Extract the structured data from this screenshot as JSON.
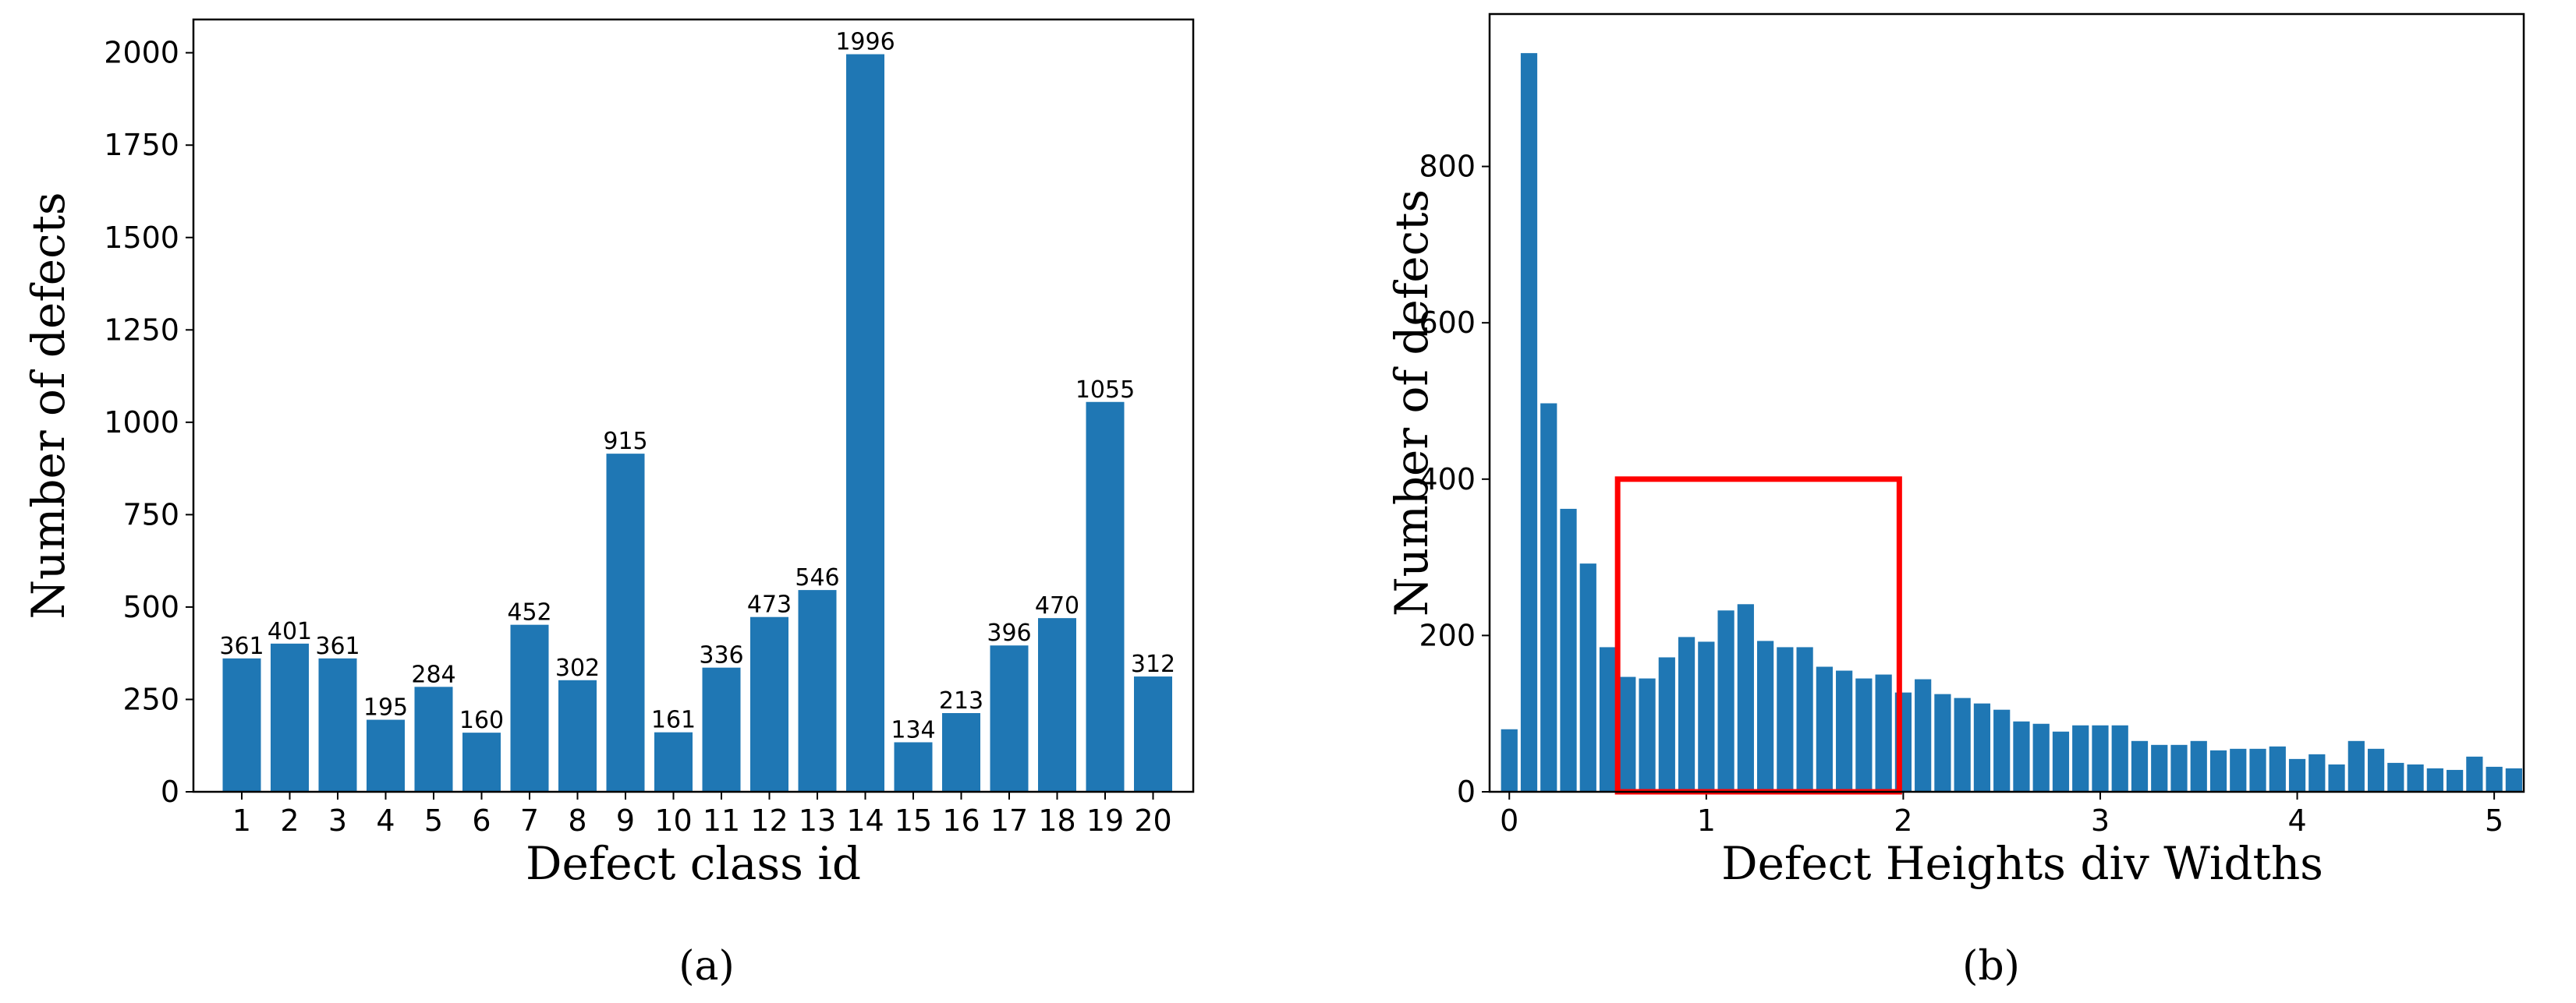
{
  "chart_data": [
    {
      "type": "bar",
      "caption": "(a)",
      "xlabel": "Defect class id",
      "ylabel": "Number of defects",
      "categories": [
        "1",
        "2",
        "3",
        "4",
        "5",
        "6",
        "7",
        "8",
        "9",
        "10",
        "11",
        "12",
        "13",
        "14",
        "15",
        "16",
        "17",
        "18",
        "19",
        "20"
      ],
      "values": [
        361,
        401,
        361,
        195,
        284,
        160,
        452,
        302,
        915,
        161,
        336,
        473,
        546,
        1996,
        134,
        213,
        396,
        470,
        1055,
        312
      ],
      "data_labels": [
        "361",
        "401",
        "361",
        "195",
        "284",
        "160",
        "452",
        "302",
        "915",
        "161",
        "336",
        "473",
        "546",
        "1996",
        "134",
        "213",
        "396",
        "470",
        "1055",
        "312"
      ],
      "yticks": [
        0,
        250,
        500,
        750,
        1000,
        1250,
        1500,
        1750,
        2000
      ],
      "ytick_labels": [
        "0",
        "250",
        "500",
        "750",
        "1000",
        "1250",
        "1500",
        "1750",
        "2000"
      ],
      "ylim": [
        0,
        2090
      ],
      "grid": false,
      "color": "#1f77b4"
    },
    {
      "type": "bar",
      "caption": "(b)",
      "xlabel": "Defect Heights div Widths",
      "ylabel": "Number of defects",
      "bin_width": 0.1,
      "x": [
        0.0,
        0.1,
        0.2,
        0.3,
        0.4,
        0.5,
        0.6,
        0.7,
        0.8,
        0.9,
        1.0,
        1.1,
        1.2,
        1.3,
        1.4,
        1.5,
        1.6,
        1.7,
        1.8,
        1.9,
        2.0,
        2.1,
        2.2,
        2.3,
        2.4,
        2.5,
        2.6,
        2.7,
        2.8,
        2.9,
        3.0,
        3.1,
        3.2,
        3.3,
        3.4,
        3.5,
        3.6,
        3.7,
        3.8,
        3.9,
        4.0,
        4.1,
        4.2,
        4.3,
        4.4,
        4.5,
        4.6,
        4.7,
        4.8,
        4.9,
        5.0,
        5.1
      ],
      "values": [
        80,
        945,
        497,
        362,
        292,
        185,
        147,
        145,
        172,
        198,
        192,
        232,
        240,
        193,
        185,
        185,
        160,
        155,
        145,
        150,
        127,
        144,
        125,
        120,
        113,
        105,
        90,
        87,
        77,
        85,
        85,
        85,
        65,
        60,
        60,
        65,
        53,
        55,
        55,
        58,
        42,
        48,
        35,
        65,
        55,
        37,
        35,
        30,
        28,
        45,
        32,
        30
      ],
      "xticks": [
        0,
        1,
        2,
        3,
        4,
        5
      ],
      "xtick_labels": [
        "0",
        "1",
        "2",
        "3",
        "4",
        "5"
      ],
      "yticks": [
        0,
        200,
        400,
        600,
        800
      ],
      "ytick_labels": [
        "0",
        "200",
        "400",
        "600",
        "800"
      ],
      "xlim": [
        -0.1,
        5.15
      ],
      "ylim": [
        0,
        995
      ],
      "grid": false,
      "color": "#1f77b4",
      "highlight_box": {
        "x0": 0.55,
        "x1": 1.98,
        "y0": 0,
        "y1": 400,
        "color": "#ff0000"
      }
    }
  ]
}
